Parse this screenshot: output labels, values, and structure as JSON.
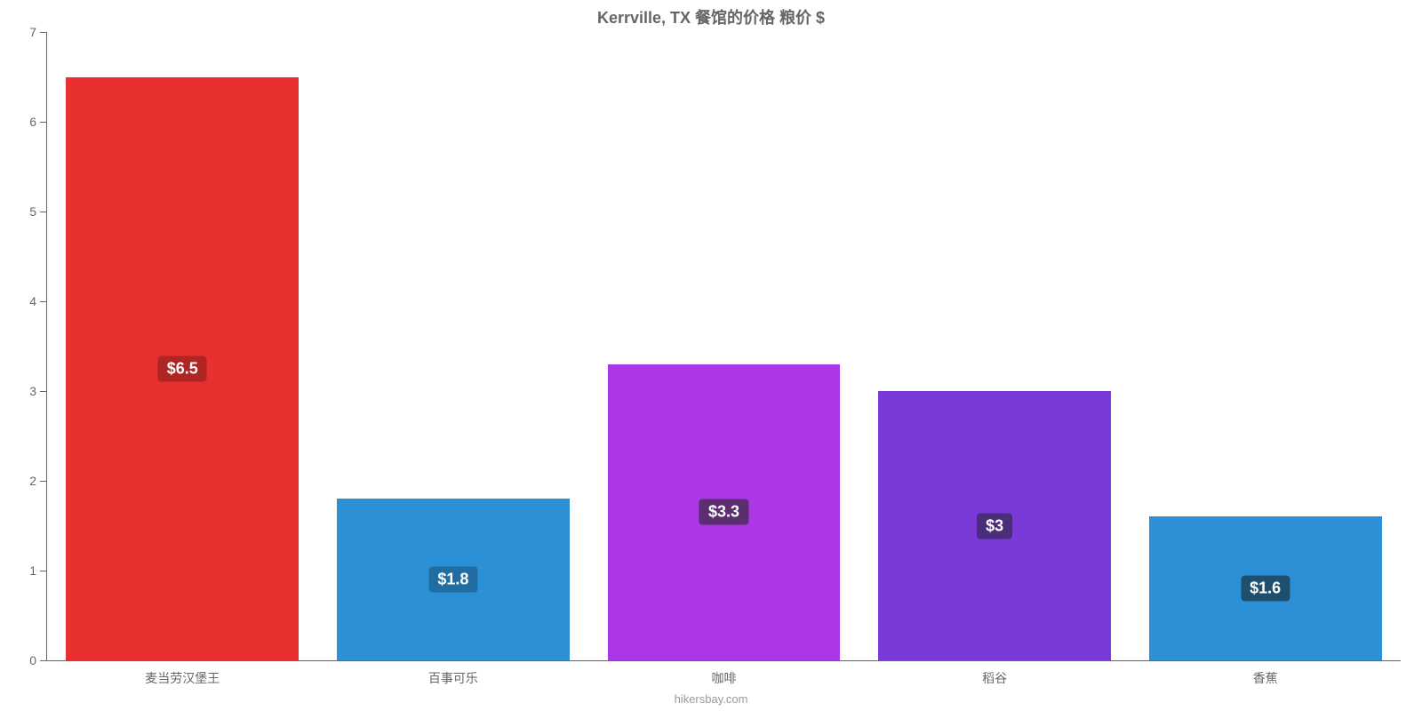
{
  "chart": {
    "type": "bar",
    "title": "Kerrville, TX 餐馆的价格 粮价 $",
    "title_color": "#666666",
    "title_fontsize": 18,
    "footer": "hikersbay.com",
    "footer_color": "#999999",
    "background_color": "#ffffff",
    "axis_color": "#666666",
    "ylim": [
      0,
      7
    ],
    "yticks": [
      0,
      1,
      2,
      3,
      4,
      5,
      6,
      7
    ],
    "label_color": "#666666",
    "label_fontsize": 14,
    "value_fontsize": 18,
    "bar_width_pct": 86,
    "bars": [
      {
        "category": "麦当劳汉堡王",
        "value": 6.5,
        "label": "$6.5",
        "bar_color": "#e7302f",
        "badge_bg": "#af2524"
      },
      {
        "category": "百事可乐",
        "value": 1.8,
        "label": "$1.8",
        "bar_color": "#2c90d7",
        "badge_bg": "#216da2"
      },
      {
        "category": "咖啡",
        "value": 3.3,
        "label": "$3.3",
        "bar_color": "#ab37e6",
        "badge_bg": "#5b2f6f"
      },
      {
        "category": "稻谷",
        "value": 3.0,
        "label": "$3",
        "bar_color": "#7a3ad8",
        "badge_bg": "#4a2e7b"
      },
      {
        "category": "香蕉",
        "value": 1.6,
        "label": "$1.6",
        "bar_color": "#2c90d7",
        "badge_bg": "#1f4f6f"
      }
    ]
  }
}
